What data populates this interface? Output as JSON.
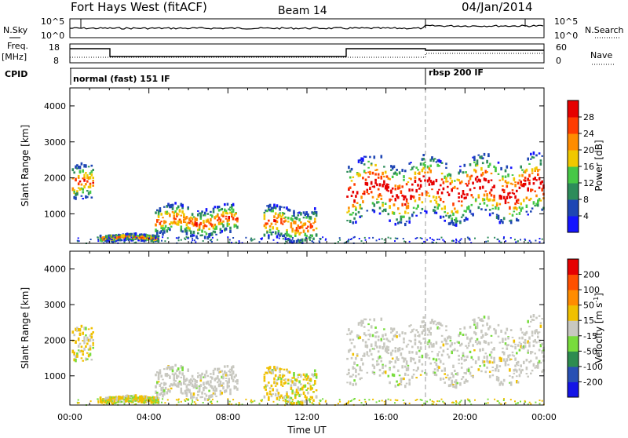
{
  "header": {
    "title": "Fort Hays West (fitACF)",
    "beam": "Beam 14",
    "date": "04/Jan/2014"
  },
  "panels": {
    "nsky_label": "N.Sky",
    "nsearch_label": "N.Search",
    "nsky_ticks": [
      "10^5",
      "10^0"
    ],
    "nsky_right_ticks": [
      "10^5",
      "10^0"
    ],
    "freq_label": "Freq.",
    "freq_unit": "[MHz]",
    "freq_ticks": [
      "18",
      "8"
    ],
    "nave_label": "Nave",
    "nave_ticks": [
      "60",
      "0"
    ],
    "cpid_label": "CPID",
    "cpid_segments": [
      {
        "label": "normal (fast) 151 IF",
        "start_hour": 0,
        "end_hour": 18
      },
      {
        "label": "rbsp 200 IF",
        "start_hour": 18,
        "end_hour": 24
      }
    ]
  },
  "chart_data": [
    {
      "type": "heatmap",
      "name": "power",
      "ylabel": "Slant Range [km]",
      "xlabel": "Time UT",
      "xlim": [
        0,
        24
      ],
      "ylim": [
        180,
        4500
      ],
      "yticks": [
        "1000",
        "2000",
        "3000",
        "4000"
      ],
      "xticks": [
        "00:00",
        "04:00",
        "08:00",
        "12:00",
        "16:00",
        "20:00",
        "00:00"
      ],
      "colorbar": {
        "label": "Power [dB]",
        "ticks": [
          "4",
          "8",
          "12",
          "16",
          "20",
          "24",
          "28"
        ],
        "colors": [
          "#1414ff",
          "#1e46b4",
          "#2d8c5a",
          "#46c846",
          "#f0c800",
          "#ff8c00",
          "#ff3c00",
          "#e60000"
        ]
      },
      "echo_regions": [
        {
          "t0": 0.1,
          "t1": 1.2,
          "r0": 1300,
          "r1": 2300
        },
        {
          "t0": 1.5,
          "t1": 4.5,
          "r0": 250,
          "r1": 420
        },
        {
          "t0": 4.3,
          "t1": 8.5,
          "r0": 400,
          "r1": 1200
        },
        {
          "t0": 9.8,
          "t1": 12.5,
          "r0": 250,
          "r1": 1150
        },
        {
          "t0": 14.0,
          "t1": 24.0,
          "r0": 850,
          "r1": 2500
        }
      ]
    },
    {
      "type": "heatmap",
      "name": "velocity",
      "ylabel": "Slant Range [km]",
      "xlabel": "Time UT",
      "xlim": [
        0,
        24
      ],
      "ylim": [
        180,
        4500
      ],
      "yticks": [
        "1000",
        "2000",
        "3000",
        "4000"
      ],
      "xticks": [
        "00:00",
        "04:00",
        "08:00",
        "12:00",
        "16:00",
        "20:00",
        "00:00"
      ],
      "colorbar": {
        "label": "Velocity [m s",
        "label_sup": "-1",
        "label_end": "]",
        "ticks": [
          "200",
          "100",
          "50",
          "15",
          "-15",
          "-50",
          "-100",
          "-200"
        ],
        "colors": [
          "#1414e6",
          "#2850b4",
          "#2d8c50",
          "#78dc3c",
          "#c8c8c0",
          "#f0c000",
          "#ff8c00",
          "#ff5000",
          "#e60000"
        ]
      }
    }
  ]
}
